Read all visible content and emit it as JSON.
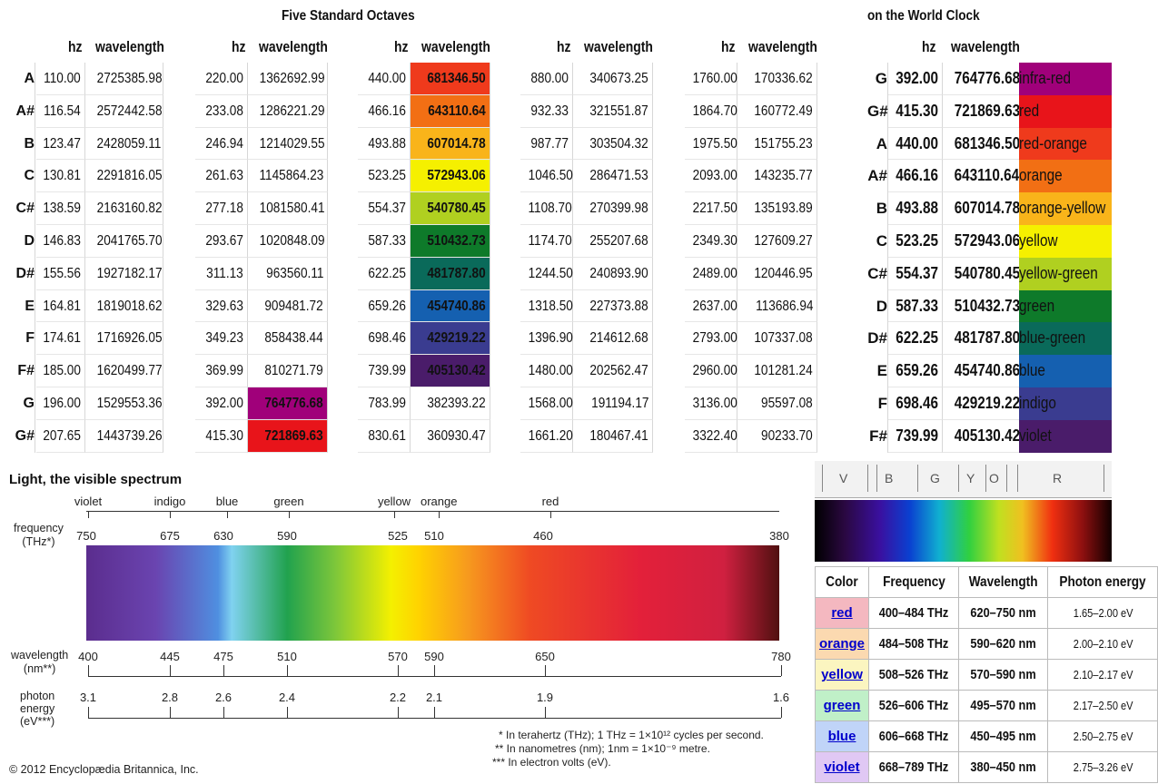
{
  "titles": {
    "octaves": "Five Standard Octaves",
    "world_clock": "on the World Clock"
  },
  "col_headers": {
    "hz": "hz",
    "wavelength": "wavelength"
  },
  "notes": [
    "A",
    "A#",
    "B",
    "C",
    "C#",
    "D",
    "D#",
    "E",
    "F",
    "F#",
    "G",
    "G#"
  ],
  "octaves": [
    {
      "hz": [
        "110.00",
        "116.54",
        "123.47",
        "130.81",
        "138.59",
        "146.83",
        "155.56",
        "164.81",
        "174.61",
        "185.00",
        "196.00",
        "207.65"
      ],
      "wl": [
        "2725385.98",
        "2572442.58",
        "2428059.11",
        "2291816.05",
        "2163160.82",
        "2041765.70",
        "1927182.17",
        "1819018.62",
        "1716926.05",
        "1620499.77",
        "1529553.36",
        "1443739.26"
      ]
    },
    {
      "hz": [
        "220.00",
        "233.08",
        "246.94",
        "261.63",
        "277.18",
        "293.67",
        "311.13",
        "329.63",
        "349.23",
        "369.99",
        "392.00",
        "415.30"
      ],
      "wl": [
        "1362692.99",
        "1286221.29",
        "1214029.55",
        "1145864.23",
        "1081580.41",
        "1020848.09",
        "963560.11",
        "909481.72",
        "858438.44",
        "810271.79",
        "764776.68",
        "721869.63"
      ],
      "wl_colors": [
        null,
        null,
        null,
        null,
        null,
        null,
        null,
        null,
        null,
        null,
        "#a0007a",
        "#e8141a"
      ]
    },
    {
      "hz": [
        "440.00",
        "466.16",
        "493.88",
        "523.25",
        "554.37",
        "587.33",
        "622.25",
        "659.26",
        "698.46",
        "739.99",
        "783.99",
        "830.61"
      ],
      "wl": [
        "681346.50",
        "643110.64",
        "607014.78",
        "572943.06",
        "540780.45",
        "510432.73",
        "481787.80",
        "454740.86",
        "429219.22",
        "405130.42",
        "382393.22",
        "360930.47"
      ],
      "wl_colors": [
        "#ef3a1c",
        "#f26f14",
        "#f9b41a",
        "#f5f000",
        "#b0d020",
        "#0e7a2a",
        "#0a6a5a",
        "#1560b0",
        "#3a3c90",
        "#4a1c6a",
        null,
        null
      ]
    },
    {
      "hz": [
        "880.00",
        "932.33",
        "987.77",
        "1046.50",
        "1108.70",
        "1174.70",
        "1244.50",
        "1318.50",
        "1396.90",
        "1480.00",
        "1568.00",
        "1661.20"
      ],
      "wl": [
        "340673.25",
        "321551.87",
        "303504.32",
        "286471.53",
        "270399.98",
        "255207.68",
        "240893.90",
        "227373.88",
        "214612.68",
        "202562.47",
        "191194.17",
        "180467.41"
      ]
    },
    {
      "hz": [
        "1760.00",
        "1864.70",
        "1975.50",
        "2093.00",
        "2217.50",
        "2349.30",
        "2489.00",
        "2637.00",
        "2793.00",
        "2960.00",
        "3136.00",
        "3322.40"
      ],
      "wl": [
        "170336.62",
        "160772.49",
        "151755.23",
        "143235.77",
        "135193.89",
        "127609.27",
        "120446.95",
        "113686.94",
        "107337.08",
        "101281.24",
        "95597.08",
        "90233.70"
      ]
    }
  ],
  "world_clock": [
    {
      "note": "G",
      "hz": "392.00",
      "wl": "764776.68",
      "color": "infra-red",
      "bg": "#a0007a"
    },
    {
      "note": "G#",
      "hz": "415.30",
      "wl": "721869.63",
      "color": "red",
      "bg": "#e8141a"
    },
    {
      "note": "A",
      "hz": "440.00",
      "wl": "681346.50",
      "color": "red-orange",
      "bg": "#ef3a1c"
    },
    {
      "note": "A#",
      "hz": "466.16",
      "wl": "643110.64",
      "color": "orange",
      "bg": "#f26f14"
    },
    {
      "note": "B",
      "hz": "493.88",
      "wl": "607014.78",
      "color": "orange-yellow",
      "bg": "#f9b41a"
    },
    {
      "note": "C",
      "hz": "523.25",
      "wl": "572943.06",
      "color": "yellow",
      "bg": "#f5f000"
    },
    {
      "note": "C#",
      "hz": "554.37",
      "wl": "540780.45",
      "color": "yellow-green",
      "bg": "#b0d020"
    },
    {
      "note": "D",
      "hz": "587.33",
      "wl": "510432.73",
      "color": "green",
      "bg": "#0e7a2a"
    },
    {
      "note": "D#",
      "hz": "622.25",
      "wl": "481787.80",
      "color": "blue-green",
      "bg": "#0a6a5a"
    },
    {
      "note": "E",
      "hz": "659.26",
      "wl": "454740.86",
      "color": "blue",
      "bg": "#1560b0"
    },
    {
      "note": "F",
      "hz": "698.46",
      "wl": "429219.22",
      "color": "indigo",
      "bg": "#3a3c90"
    },
    {
      "note": "F#",
      "hz": "739.99",
      "wl": "405130.42",
      "color": "violet",
      "bg": "#4a1c6a"
    }
  ],
  "spectrum": {
    "title": "Light, the visible spectrum",
    "color_names": [
      "violet",
      "indigo",
      "blue",
      "green",
      "yellow",
      "orange",
      "red"
    ],
    "frequency_label": [
      "frequency",
      "(THz*)"
    ],
    "frequency_values": [
      "750",
      "675",
      "630",
      "590",
      "525",
      "510",
      "460",
      "380"
    ],
    "wavelength_label": [
      "wavelength",
      "(nm**)"
    ],
    "wavelength_values": [
      "400",
      "445",
      "475",
      "510",
      "570",
      "590",
      "650",
      "780"
    ],
    "energy_label": [
      "photon",
      "energy",
      "(eV***)"
    ],
    "energy_values": [
      "3.1",
      "2.8",
      "2.6",
      "2.4",
      "2.2",
      "2.1",
      "1.9",
      "1.6"
    ],
    "notes": [
      "* In terahertz (THz); 1 THz = 1×10¹² cycles per second.",
      "** In nanometres (nm); 1nm = 1×10⁻⁹ metre.",
      "*** In electron volts (eV)."
    ],
    "copyright": "© 2012 Encyclopædia Britannica, Inc."
  },
  "band_letters": [
    "V",
    "B",
    "G",
    "Y",
    "O",
    "R"
  ],
  "color_table": {
    "headers": [
      "Color",
      "Frequency",
      "Wavelength",
      "Photon energy"
    ],
    "rows": [
      {
        "color": "red",
        "freq": "400–484 THz",
        "wl": "620–750 nm",
        "energy": "1.65–2.00 eV",
        "bg": "#f4b8c0"
      },
      {
        "color": "orange",
        "freq": "484–508 THz",
        "wl": "590–620 nm",
        "energy": "2.00–2.10 eV",
        "bg": "#fbd9b0"
      },
      {
        "color": "yellow",
        "freq": "508–526 THz",
        "wl": "570–590 nm",
        "energy": "2.10–2.17 eV",
        "bg": "#fbf5c0"
      },
      {
        "color": "green",
        "freq": "526–606 THz",
        "wl": "495–570 nm",
        "energy": "2.17–2.50 eV",
        "bg": "#c0f0c8"
      },
      {
        "color": "blue",
        "freq": "606–668 THz",
        "wl": "450–495 nm",
        "energy": "2.50–2.75 eV",
        "bg": "#c0d4f8"
      },
      {
        "color": "violet",
        "freq": "668–789 THz",
        "wl": "380–450 nm",
        "energy": "2.75–3.26 eV",
        "bg": "#e0c8f4"
      }
    ]
  }
}
